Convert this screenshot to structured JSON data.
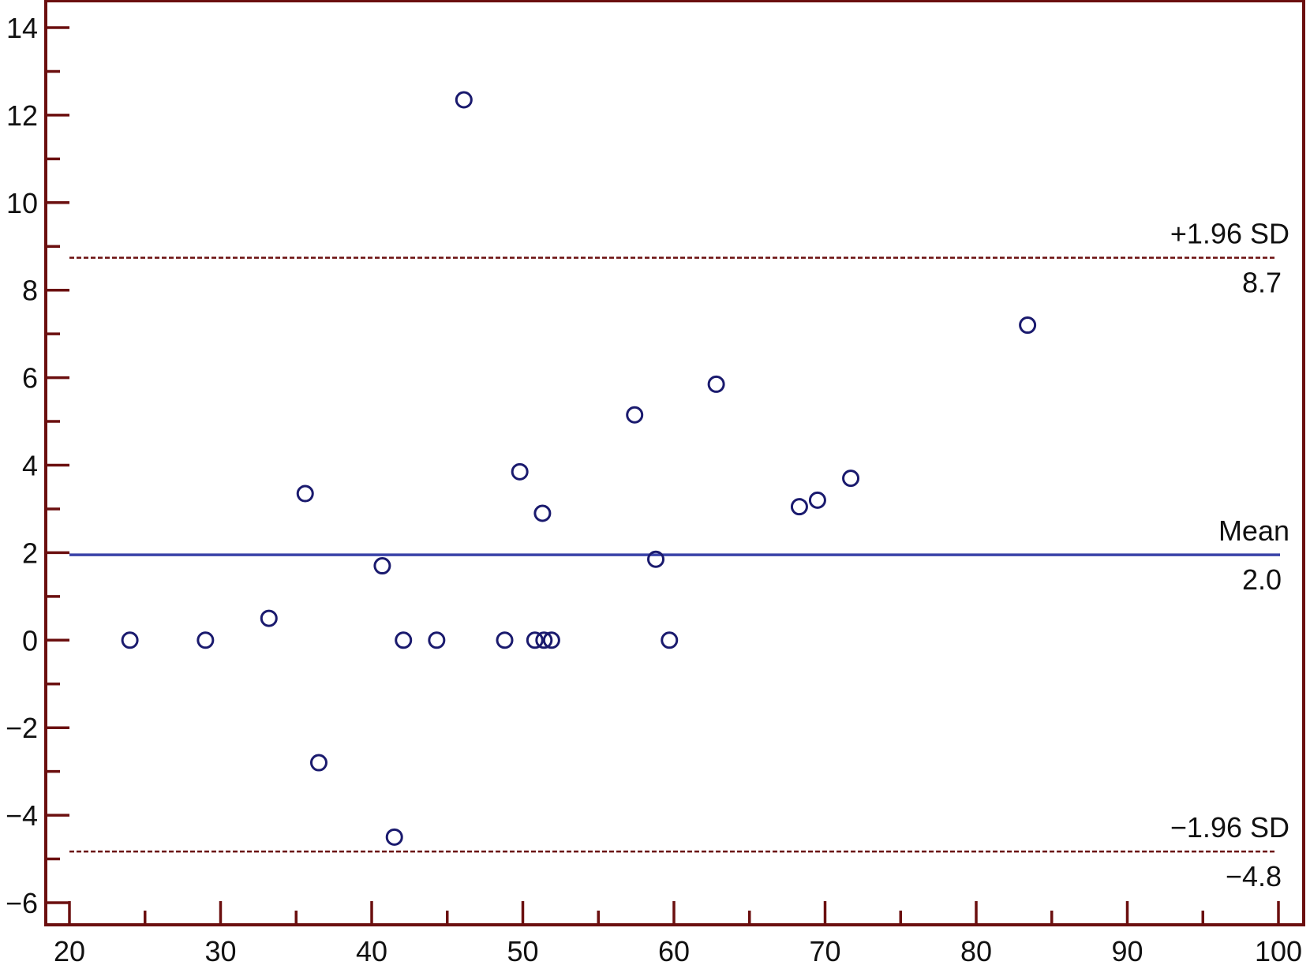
{
  "chart_data": {
    "type": "scatter",
    "title": "",
    "xlabel": "",
    "ylabel": "",
    "xlim": [
      20,
      100
    ],
    "ylim": [
      -6.5,
      14.5
    ],
    "x_ticks": [
      20,
      30,
      40,
      50,
      60,
      70,
      80,
      90,
      100
    ],
    "x_tick_labels": [
      "20",
      "30",
      "40",
      "50",
      "60",
      "70",
      "80",
      "90",
      "100"
    ],
    "y_ticks": [
      -6,
      -4,
      -2,
      0,
      2,
      4,
      6,
      8,
      10,
      12,
      14
    ],
    "y_tick_labels": [
      "−6",
      "−4",
      "−2",
      "0",
      "2",
      "4",
      "6",
      "8",
      "10",
      "12",
      "14"
    ],
    "grid": false,
    "series": [
      {
        "x": [
          24,
          29,
          33.2,
          35.6,
          36.5,
          40.7,
          41.5,
          42.1,
          44.3,
          46.1,
          48.8,
          49.8,
          50.8,
          51.3,
          51.4,
          51.9,
          57.4,
          58.8,
          59.7,
          62.8,
          68.3,
          69.5,
          71.7,
          83.4
        ],
        "y": [
          0,
          0,
          0.5,
          3.35,
          -2.8,
          1.7,
          -4.5,
          0,
          0,
          12.35,
          0,
          3.85,
          0,
          2.9,
          0,
          0,
          5.15,
          1.85,
          0,
          5.85,
          3.05,
          3.2,
          3.7,
          7.2
        ]
      }
    ],
    "reference_lines": [
      {
        "label": "+1.96 SD",
        "value_label": "8.7",
        "y": 8.74,
        "style": "dashed"
      },
      {
        "label": "Mean",
        "value_label": "2.0",
        "y": 1.95,
        "style": "solid"
      },
      {
        "label": "−1.96 SD",
        "value_label": "−4.8",
        "y": -4.83,
        "style": "dashed"
      }
    ],
    "colors": {
      "frame": "#6b0f0f",
      "points": "#1a1a6e",
      "mean_line": "#3a43a8",
      "sd_line": "#6b0f0f"
    }
  }
}
